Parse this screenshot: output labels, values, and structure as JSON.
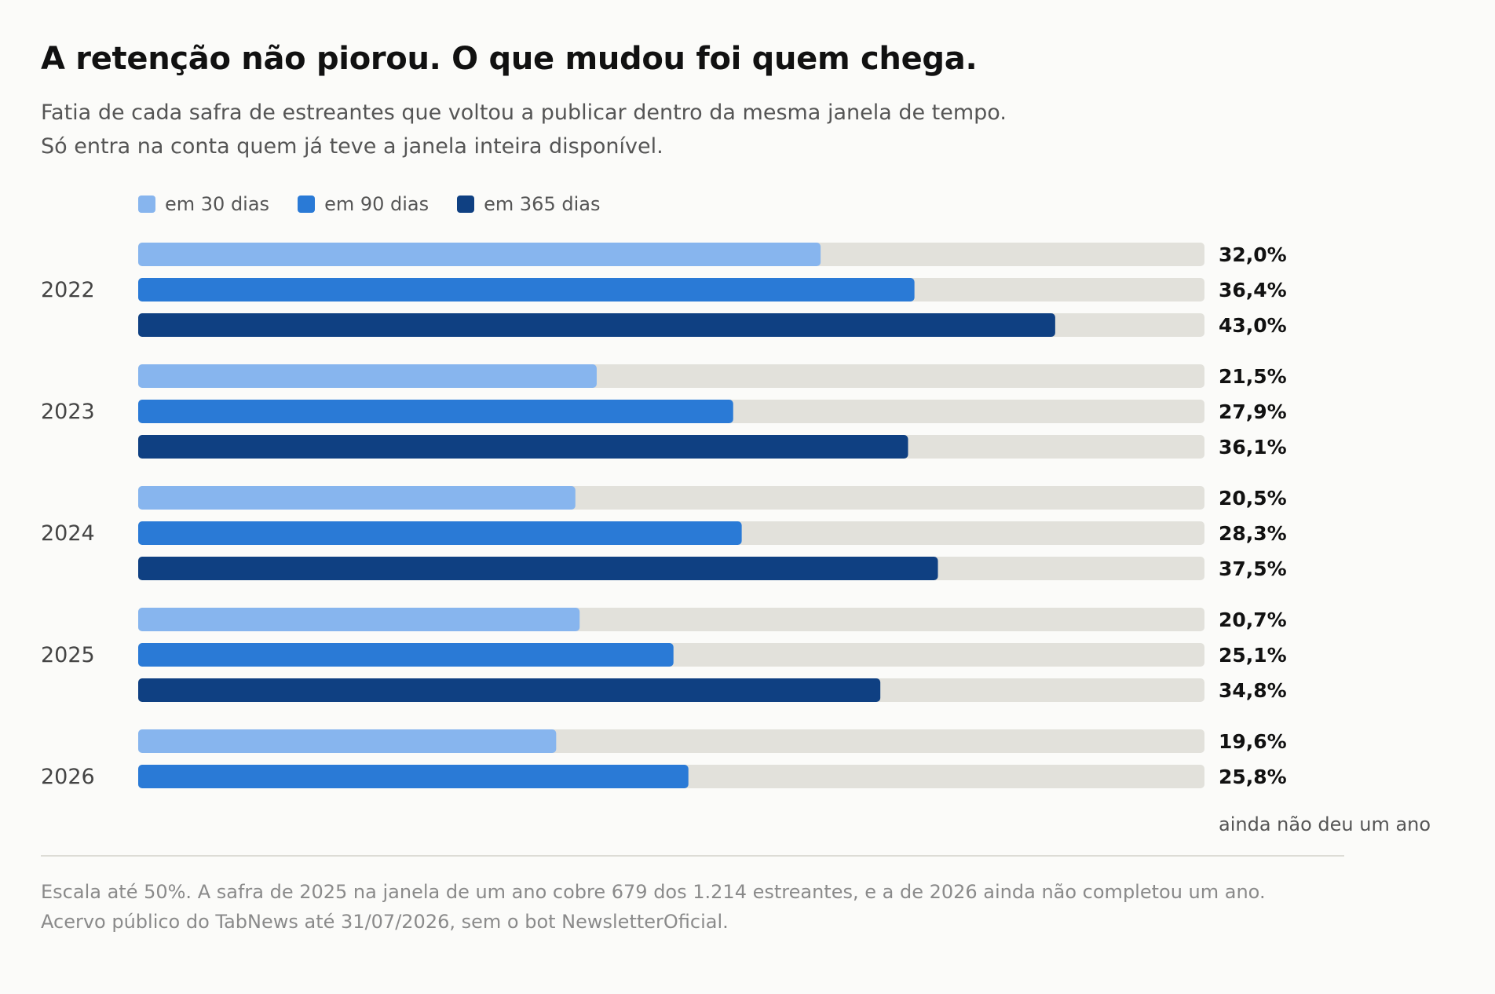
{
  "title": "A retenção não piorou. O que mudou foi quem chega.",
  "subtitle": [
    "Fatia de cada safra de estreantes que voltou a publicar dentro da mesma janela de tempo.",
    "Só entra na conta quem já teve a janela inteira disponível."
  ],
  "legend": [
    {
      "label": "em 30 dias",
      "color": "#87b5ee"
    },
    {
      "label": "em 90 dias",
      "color": "#2a7ad6"
    },
    {
      "label": "em 365 dias",
      "color": "#0f4082"
    }
  ],
  "track_color": "#e2e1db",
  "chart_data": {
    "type": "bar",
    "orientation": "horizontal",
    "categories": [
      "2022",
      "2023",
      "2024",
      "2025",
      "2026"
    ],
    "xlim": [
      0,
      50
    ],
    "series": [
      {
        "name": "em 30 dias",
        "values": [
          32.0,
          21.5,
          20.5,
          20.7,
          19.6
        ],
        "labels": [
          "32,0%",
          "21,5%",
          "20,5%",
          "20,7%",
          "19,6%"
        ]
      },
      {
        "name": "em 90 dias",
        "values": [
          36.4,
          27.9,
          28.3,
          25.1,
          25.8
        ],
        "labels": [
          "36,4%",
          "27,9%",
          "28,3%",
          "25,1%",
          "25,8%"
        ]
      },
      {
        "name": "em 365 dias",
        "values": [
          43.0,
          36.1,
          37.5,
          34.8,
          null
        ],
        "labels": [
          "43,0%",
          "36,1%",
          "37,5%",
          "34,8%",
          null
        ]
      }
    ],
    "annotations": [
      {
        "category": "2026",
        "text": "ainda não deu um ano"
      }
    ]
  },
  "footnote": "Escala até 50%. A safra de 2025 na janela de um ano cobre 679 dos 1.214 estreantes, e a de 2026 ainda não completou um ano. Acervo público do TabNews até 31/07/2026, sem o bot NewsletterOficial."
}
